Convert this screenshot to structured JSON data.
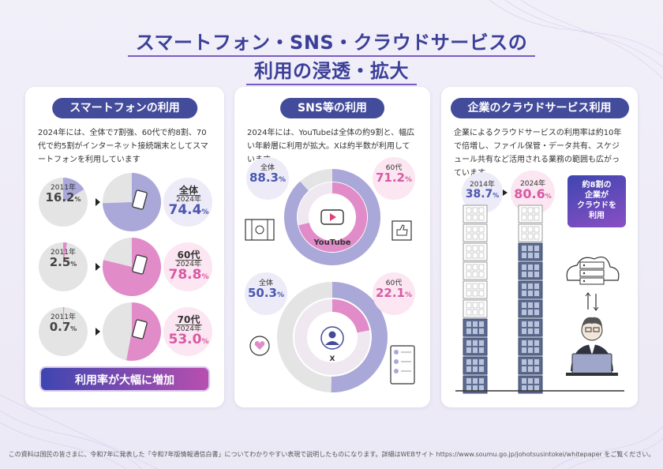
{
  "title": {
    "line1": "スマートフォン・SNS・クラウドサービスの",
    "line2": "利用の浸透・拡大"
  },
  "smartphone": {
    "heading": "スマートフォンの利用",
    "description": "2024年には、全体で7割強、60代で約8割、70代で約5割がインターネット接続端末としてスマートフォンを利用しています",
    "rows": [
      {
        "label2011": "2011年",
        "value2011": "16.2",
        "unit": "%",
        "category": "全体",
        "label2024": "2024年",
        "value2024": "74.4",
        "share2011": 16.2,
        "share2024": 74.4,
        "color": "#a9a8d8"
      },
      {
        "label2011": "2011年",
        "value2011": "2.5",
        "unit": "%",
        "category": "60代",
        "label2024": "2024年",
        "value2024": "78.8",
        "share2011": 2.5,
        "share2024": 78.8,
        "color": "#e28bc9"
      },
      {
        "label2011": "2011年",
        "value2011": "0.7",
        "unit": "%",
        "category": "70代",
        "label2024": "2024年",
        "value2024": "53.0",
        "share2011": 0.7,
        "share2024": 53.0,
        "color": "#e28bc9"
      }
    ],
    "summary": "利用率が大幅に増加"
  },
  "sns": {
    "heading": "SNS等の利用",
    "description": "2024年には、YouTubeは全体の約9割と、幅広い年齢層に利用が拡大。Xは約半数が利用しています",
    "youtube": {
      "name": "YouTube",
      "total_label": "全体",
      "total_value": "88.3",
      "total_share": 88.3,
      "age_label": "60代",
      "age_value": "71.2",
      "age_share": 71.2,
      "unit": "%"
    },
    "x": {
      "name": "X",
      "total_label": "全体",
      "total_value": "50.3",
      "total_share": 50.3,
      "age_label": "60代",
      "age_value": "22.1",
      "age_share": 22.1,
      "unit": "%"
    }
  },
  "cloud": {
    "heading": "企業のクラウドサービス利用",
    "description": "企業によるクラウドサービスの利用率は約10年で倍増し、ファイル保管・データ共有、スケジュール共有など活用される業務の範囲も広がっています",
    "year2014": "2014年",
    "value2014": "38.7",
    "year2024": "2024年",
    "value2024": "80.6",
    "unit": "%",
    "share2014": 38.7,
    "share2024": 80.6,
    "callout": [
      "約8割の",
      "企業が",
      "クラウドを",
      "利用"
    ]
  },
  "footer": "この資料は国民の皆さまに、令和7年に発表した「令和7年版情報通信白書」についてわかりやすい表現で説明したものになります。詳細はWEBサイト https://www.soumu.go.jp/johotsusintokei/whitepaper をご覧ください。",
  "colors": {
    "navy": "#434b9b",
    "lavender": "#a9a8d8",
    "pink": "#e28bc9",
    "gray": "#e4e4e4"
  }
}
